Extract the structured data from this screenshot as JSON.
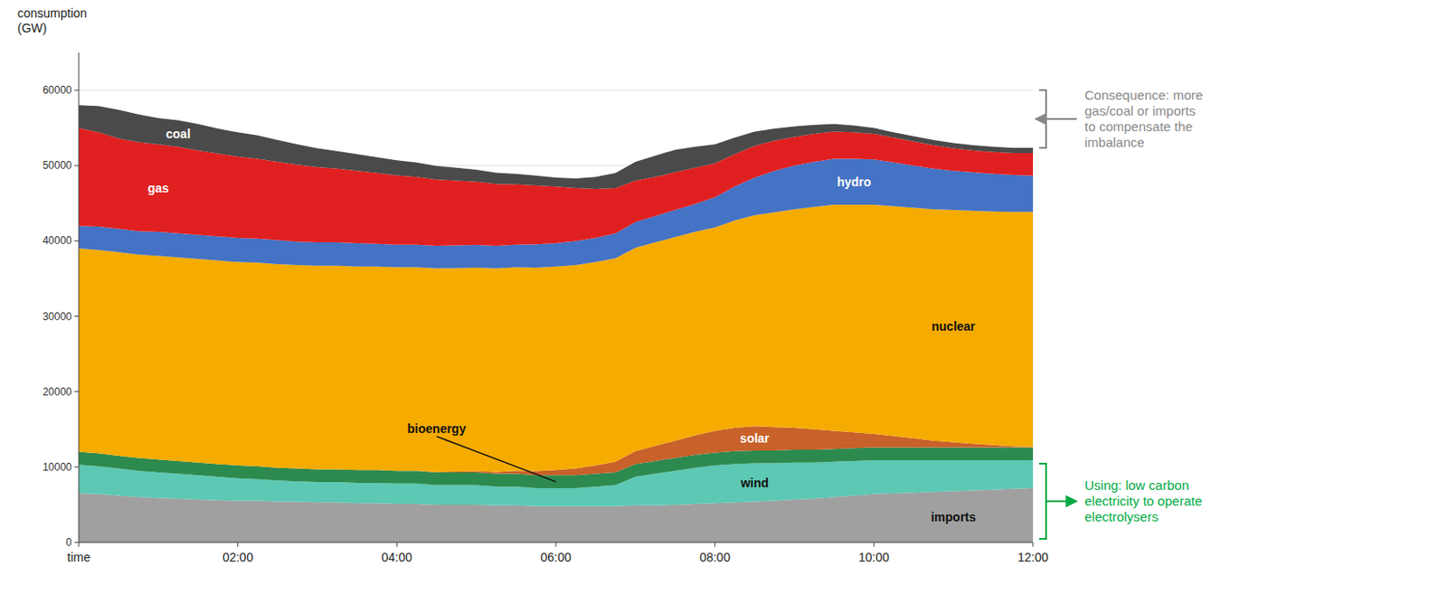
{
  "chart_data": {
    "type": "area",
    "stacked": true,
    "grid": true,
    "y_label": "consumption\n(GW)",
    "x": [
      0,
      0.25,
      0.5,
      0.75,
      1,
      1.25,
      1.5,
      1.75,
      2,
      2.25,
      2.5,
      2.75,
      3,
      3.25,
      3.5,
      3.75,
      4,
      4.25,
      4.5,
      4.75,
      5,
      5.25,
      5.5,
      5.75,
      6,
      6.25,
      6.5,
      6.75,
      7,
      7.25,
      7.5,
      7.75,
      8,
      8.25,
      8.5,
      8.75,
      9,
      9.25,
      9.5,
      9.75,
      10,
      10.25,
      10.5,
      10.75,
      11,
      11.25,
      11.5,
      11.75,
      12
    ],
    "xlim": [
      0,
      12
    ],
    "xticks": [
      {
        "value": 0,
        "label": "time"
      },
      {
        "value": 2,
        "label": "02:00"
      },
      {
        "value": 4,
        "label": "04:00"
      },
      {
        "value": 6,
        "label": "06:00"
      },
      {
        "value": 8,
        "label": "08:00"
      },
      {
        "value": 10,
        "label": "10:00"
      },
      {
        "value": 12,
        "label": "12:00"
      }
    ],
    "ylim": [
      0,
      65000
    ],
    "yticks": [
      0,
      10000,
      20000,
      30000,
      40000,
      50000,
      60000
    ],
    "series": [
      {
        "name": "imports",
        "color": "#a0a0a0",
        "values": [
          6500,
          6400,
          6200,
          6000,
          5900,
          5800,
          5700,
          5600,
          5500,
          5500,
          5400,
          5400,
          5300,
          5300,
          5200,
          5200,
          5100,
          5100,
          5000,
          5000,
          5000,
          4900,
          4900,
          4800,
          4800,
          4800,
          4800,
          4800,
          4900,
          4900,
          5000,
          5100,
          5200,
          5300,
          5400,
          5500,
          5700,
          5800,
          6000,
          6200,
          6400,
          6500,
          6600,
          6700,
          6800,
          6900,
          7000,
          7100,
          7200
        ]
      },
      {
        "name": "wind",
        "color": "#5dc8b4",
        "values": [
          3800,
          3700,
          3600,
          3500,
          3400,
          3300,
          3200,
          3100,
          3000,
          2900,
          2800,
          2700,
          2700,
          2700,
          2700,
          2700,
          2700,
          2700,
          2600,
          2600,
          2600,
          2500,
          2500,
          2400,
          2400,
          2400,
          2600,
          2800,
          3800,
          4200,
          4500,
          4800,
          5000,
          5100,
          5100,
          5000,
          4900,
          4800,
          4700,
          4600,
          4500,
          4400,
          4300,
          4200,
          4100,
          4000,
          3900,
          3800,
          3700
        ]
      },
      {
        "name": "bioenergy",
        "color": "#2d8a4e",
        "values": [
          1700,
          1700,
          1700,
          1700,
          1700,
          1700,
          1700,
          1700,
          1700,
          1700,
          1700,
          1700,
          1700,
          1700,
          1700,
          1700,
          1700,
          1700,
          1700,
          1700,
          1700,
          1700,
          1700,
          1700,
          1700,
          1700,
          1700,
          1700,
          1700,
          1700,
          1700,
          1700,
          1700,
          1700,
          1700,
          1700,
          1700,
          1700,
          1700,
          1700,
          1700,
          1700,
          1700,
          1700,
          1700,
          1700,
          1700,
          1700,
          1700
        ]
      },
      {
        "name": "solar",
        "color": "#c8612a",
        "values": [
          0,
          0,
          0,
          0,
          0,
          0,
          0,
          0,
          0,
          0,
          0,
          0,
          0,
          0,
          0,
          0,
          0,
          0,
          50,
          100,
          150,
          250,
          400,
          550,
          700,
          900,
          1100,
          1400,
          1700,
          2000,
          2300,
          2600,
          2900,
          3100,
          3200,
          3100,
          2900,
          2700,
          2400,
          2100,
          1800,
          1500,
          1200,
          900,
          700,
          500,
          300,
          150,
          50
        ]
      },
      {
        "name": "nuclear",
        "color": "#f5ab00",
        "values": [
          27000,
          27000,
          27000,
          27000,
          27000,
          27000,
          27000,
          27000,
          27000,
          27000,
          27000,
          27000,
          27000,
          27000,
          27000,
          27000,
          27000,
          27000,
          27000,
          27000,
          27000,
          27000,
          27000,
          27000,
          27000,
          27000,
          27000,
          27000,
          27000,
          27000,
          27000,
          27000,
          27000,
          27500,
          28000,
          28500,
          29000,
          29500,
          30000,
          30200,
          30400,
          30500,
          30600,
          30700,
          30800,
          30900,
          31000,
          31100,
          31200
        ]
      },
      {
        "name": "hydro",
        "color": "#4472c4",
        "values": [
          3000,
          3100,
          3100,
          3100,
          3200,
          3200,
          3200,
          3200,
          3200,
          3200,
          3200,
          3100,
          3100,
          3100,
          3100,
          3000,
          3000,
          3000,
          3000,
          3000,
          3000,
          3000,
          3000,
          3100,
          3100,
          3200,
          3200,
          3300,
          3400,
          3500,
          3600,
          3700,
          4000,
          4500,
          5000,
          5500,
          5800,
          6000,
          6100,
          6100,
          6000,
          5800,
          5600,
          5400,
          5200,
          5100,
          5000,
          4900,
          4800
        ]
      },
      {
        "name": "gas",
        "color": "#e02020",
        "values": [
          13000,
          12500,
          12000,
          11800,
          11600,
          11500,
          11200,
          11000,
          10800,
          10600,
          10400,
          10200,
          10000,
          9800,
          9600,
          9400,
          9200,
          9000,
          8800,
          8600,
          8400,
          8200,
          8000,
          7800,
          7500,
          7000,
          6500,
          6000,
          5500,
          5200,
          5000,
          4800,
          4500,
          4300,
          4200,
          4000,
          3800,
          3700,
          3600,
          3500,
          3400,
          3300,
          3200,
          3100,
          3000,
          2900,
          2900,
          2900,
          3000
        ]
      },
      {
        "name": "coal",
        "color": "#4a4a4a",
        "values": [
          3000,
          3500,
          3800,
          3700,
          3500,
          3500,
          3500,
          3300,
          3200,
          3100,
          2900,
          2700,
          2500,
          2300,
          2200,
          2100,
          2000,
          1900,
          1800,
          1700,
          1600,
          1500,
          1400,
          1300,
          1200,
          1300,
          1600,
          2000,
          2500,
          2800,
          3000,
          2800,
          2500,
          2200,
          1900,
          1600,
          1400,
          1200,
          1000,
          900,
          800,
          700,
          700,
          700,
          700,
          700,
          700,
          700,
          700
        ]
      }
    ],
    "annotations": [
      {
        "text": "Consequence: more\ngas/coal or imports\nto compensate the\nimbalance",
        "color": "#888888"
      },
      {
        "text": "Using: low carbon\nelectricity to operate\nelectrolysers",
        "color": "#00aa44"
      }
    ]
  }
}
